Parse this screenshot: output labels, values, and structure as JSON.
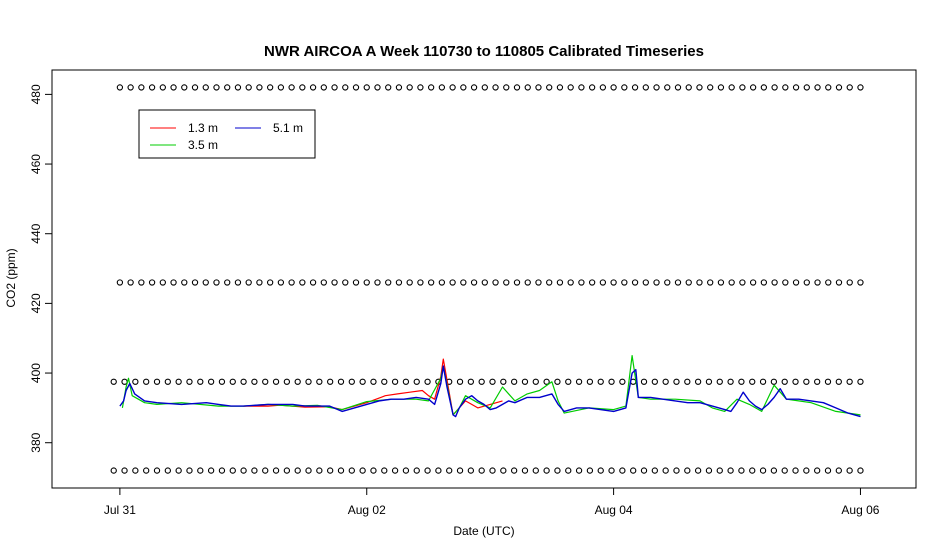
{
  "chart_data": {
    "type": "line",
    "title": "NWR AIRCOA A  Week 110730 to 110805  Calibrated Timeseries",
    "xlabel": "Date (UTC)",
    "ylabel": "CO2 (ppm)",
    "x_unit": "days since Jul 30 00:00 UTC",
    "xlim": [
      0.45,
      7.45
    ],
    "ylim": [
      367,
      487
    ],
    "x_ticks": [
      {
        "label": "Jul 31",
        "value": 1
      },
      {
        "label": "Aug 02",
        "value": 3
      },
      {
        "label": "Aug 04",
        "value": 5
      },
      {
        "label": "Aug 06",
        "value": 7
      }
    ],
    "y_ticks": [
      {
        "label": "380",
        "value": 380
      },
      {
        "label": "400",
        "value": 400
      },
      {
        "label": "420",
        "value": 420
      },
      {
        "label": "440",
        "value": 440
      },
      {
        "label": "460",
        "value": 460
      },
      {
        "label": "480",
        "value": 480
      }
    ],
    "grid": false,
    "legend_position": "top-left",
    "series": [
      {
        "name": "1.3 m",
        "color": "#ff0000",
        "x": [
          2.0,
          2.1,
          2.2,
          2.3,
          2.5,
          2.7,
          2.8,
          3.0,
          3.1,
          3.15,
          3.25,
          3.35,
          3.45,
          3.5,
          3.55,
          3.6,
          3.62,
          3.65,
          3.7,
          3.75,
          3.8,
          3.85,
          3.9,
          4.0,
          4.1
        ],
        "values": [
          390.5,
          390.5,
          390.5,
          390.8,
          390.2,
          390.3,
          389.5,
          391.5,
          392.8,
          393.5,
          394,
          394.5,
          395,
          393.5,
          392.5,
          399,
          404,
          398,
          388,
          390,
          392,
          391,
          390,
          391,
          392
        ]
      },
      {
        "name": "3.5 m",
        "color": "#00cc00",
        "x": [
          1.02,
          1.05,
          1.07,
          1.1,
          1.2,
          1.3,
          1.5,
          1.8,
          2.0,
          2.2,
          2.4,
          2.6,
          2.8,
          3.0,
          3.2,
          3.4,
          3.5,
          3.6,
          3.62,
          3.7,
          3.75,
          3.8,
          3.9,
          4.0,
          4.1,
          4.2,
          4.3,
          4.4,
          4.5,
          4.55,
          4.6,
          4.8,
          5.0,
          5.1,
          5.15,
          5.2,
          5.3,
          5.5,
          5.7,
          5.8,
          5.9,
          6.0,
          6.1,
          6.2,
          6.3,
          6.4,
          6.5,
          6.6,
          6.8,
          7.0
        ],
        "values": [
          390,
          396,
          398.5,
          393.5,
          391.5,
          391,
          391.5,
          390.5,
          390.5,
          391,
          390.5,
          390.7,
          389.5,
          391.8,
          392.5,
          392.5,
          392,
          398.5,
          402,
          388,
          390,
          393.5,
          391.5,
          390,
          396,
          392,
          394,
          395,
          397.5,
          392,
          388.5,
          390,
          389.5,
          390.5,
          405,
          393,
          392.5,
          392.5,
          392,
          390,
          389,
          392.5,
          391,
          389,
          396.5,
          392.5,
          392,
          391.5,
          389,
          388
        ]
      },
      {
        "name": "5.1 m",
        "color": "#0000cc",
        "x": [
          1.0,
          1.03,
          1.05,
          1.08,
          1.12,
          1.2,
          1.3,
          1.5,
          1.7,
          1.8,
          1.9,
          2.0,
          2.2,
          2.4,
          2.5,
          2.6,
          2.7,
          2.8,
          2.9,
          3.0,
          3.1,
          3.2,
          3.3,
          3.4,
          3.5,
          3.55,
          3.6,
          3.62,
          3.65,
          3.7,
          3.72,
          3.75,
          3.8,
          3.85,
          3.9,
          3.95,
          4.0,
          4.05,
          4.1,
          4.15,
          4.2,
          4.3,
          4.4,
          4.5,
          4.55,
          4.6,
          4.7,
          4.8,
          5.0,
          5.1,
          5.15,
          5.18,
          5.2,
          5.3,
          5.4,
          5.5,
          5.6,
          5.7,
          5.8,
          5.9,
          5.95,
          6.0,
          6.05,
          6.1,
          6.15,
          6.2,
          6.25,
          6.3,
          6.35,
          6.4,
          6.5,
          6.6,
          6.7,
          6.8,
          6.9,
          7.0
        ],
        "values": [
          390.5,
          392,
          395,
          397,
          394,
          392,
          391.5,
          391,
          391.5,
          391,
          390.5,
          390.5,
          391,
          391,
          390.5,
          390.5,
          390.5,
          389,
          390,
          391,
          392,
          392.5,
          392.5,
          393,
          392.5,
          391,
          397,
          402,
          396,
          388,
          387.5,
          390,
          392.5,
          393.5,
          392,
          391,
          389.5,
          390,
          391,
          392,
          391.5,
          393,
          393,
          394,
          391,
          389,
          390,
          390,
          389,
          390,
          400,
          401,
          393,
          393,
          392.5,
          392,
          391.5,
          391.5,
          390.5,
          389.5,
          389,
          391.5,
          394.5,
          392,
          390.5,
          389.5,
          391,
          393,
          395.5,
          392.5,
          392.5,
          392,
          391.5,
          390,
          388.5,
          387.5
        ]
      }
    ],
    "reference_levels": [
      {
        "value": 482,
        "x_start": 1.0,
        "x_end": 7.0,
        "count": 70,
        "marker": "o"
      },
      {
        "value": 426,
        "x_start": 1.0,
        "x_end": 7.0,
        "count": 70,
        "marker": "o"
      },
      {
        "value": 397.5,
        "x_start": 0.95,
        "x_end": 7.0,
        "count": 70,
        "marker": "o"
      },
      {
        "value": 372,
        "x_start": 0.95,
        "x_end": 7.0,
        "count": 70,
        "marker": "o"
      }
    ]
  }
}
